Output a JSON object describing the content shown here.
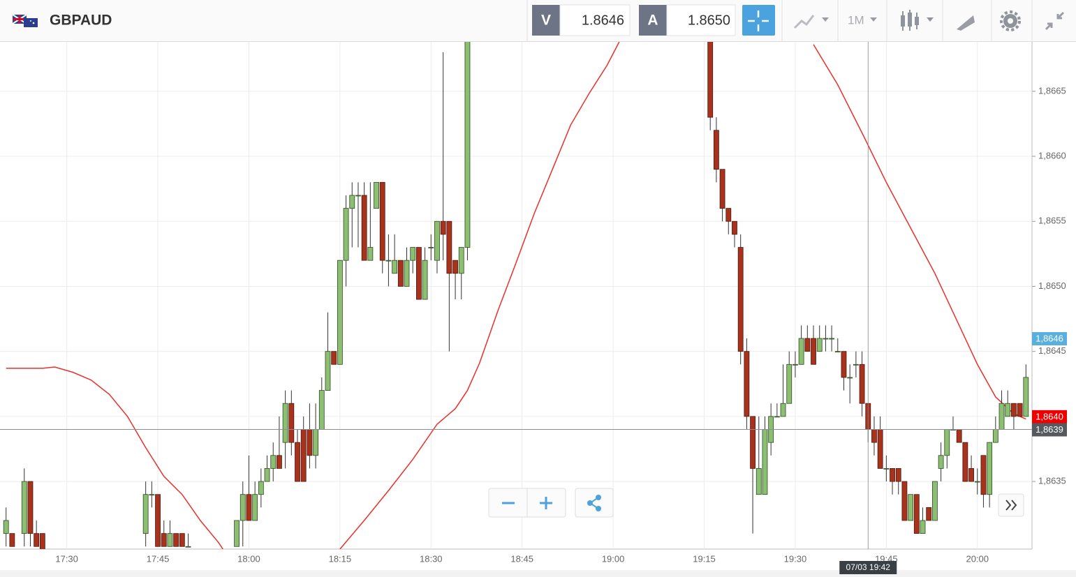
{
  "header": {
    "symbol": "GBPAUD",
    "sell_label": "V",
    "sell_price": {
      "value": 1.8646,
      "label": "1.8646"
    },
    "buy_label": "A",
    "buy_price": {
      "value": 1.865,
      "label": "1.8650"
    },
    "timeframe": "1M"
  },
  "chart_data": {
    "type": "candlestick",
    "up_color": "#8cbf72",
    "down_color": "#a8321c",
    "grid": true,
    "xlim": [
      "17:19",
      "20:09"
    ],
    "ylim": [
      1.86298,
      1.86688
    ],
    "xticks": [
      "17:30",
      "17:45",
      "18:00",
      "18:15",
      "18:30",
      "18:45",
      "19:00",
      "19:15",
      "19:30",
      "19:45",
      "20:00"
    ],
    "yticks": [
      {
        "value": 1.8635,
        "label": "1,8635"
      },
      {
        "value": 1.864,
        "label": "1,8640"
      },
      {
        "value": 1.8645,
        "label": "1,8645"
      },
      {
        "value": 1.865,
        "label": "1,8650"
      },
      {
        "value": 1.8655,
        "label": "1,8655"
      },
      {
        "value": 1.866,
        "label": "1,8660"
      },
      {
        "value": 1.8665,
        "label": "1,8665"
      }
    ],
    "x": [
      "17:20",
      "17:21",
      "17:23",
      "17:24",
      "17:25",
      "17:26",
      "17:43",
      "17:44",
      "17:45",
      "17:46",
      "17:47",
      "17:48",
      "17:49",
      "17:50",
      "17:58",
      "17:59",
      "18:00",
      "18:01",
      "18:02",
      "18:03",
      "18:04",
      "18:05",
      "18:06",
      "18:07",
      "18:08",
      "18:09",
      "18:10",
      "18:11",
      "18:12",
      "18:13",
      "18:14",
      "18:15",
      "18:16",
      "18:17",
      "18:18",
      "18:19",
      "18:20",
      "18:21",
      "18:22",
      "18:23",
      "18:24",
      "18:25",
      "18:26",
      "18:27",
      "18:28",
      "18:29",
      "18:30",
      "18:31",
      "18:32",
      "18:33",
      "18:34",
      "18:35",
      "18:36",
      "19:16",
      "19:17",
      "19:18",
      "19:19",
      "19:20",
      "19:21",
      "19:22",
      "19:23",
      "19:24",
      "19:25",
      "19:26",
      "19:27",
      "19:28",
      "19:29",
      "19:30",
      "19:31",
      "19:32",
      "19:33",
      "19:34",
      "19:35",
      "19:36",
      "19:37",
      "19:38",
      "19:39",
      "19:40",
      "19:41",
      "19:42",
      "19:43",
      "19:44",
      "19:45",
      "19:46",
      "19:47",
      "19:48",
      "19:49",
      "19:50",
      "19:51",
      "19:52",
      "19:53",
      "19:54",
      "19:55",
      "19:56",
      "19:57",
      "19:58",
      "19:59",
      "20:00",
      "20:01",
      "20:02",
      "20:03",
      "20:04",
      "20:05",
      "20:06",
      "20:07",
      "20:08"
    ],
    "open": [
      1.8631,
      1.8631,
      1.8631,
      1.8635,
      1.8631,
      1.8631,
      1.8631,
      1.8634,
      1.8634,
      1.8631,
      1.863,
      1.8631,
      1.8631,
      1.863,
      1.863,
      1.8632,
      1.8634,
      1.8632,
      1.8634,
      1.8635,
      1.8636,
      1.8637,
      1.8638,
      1.8641,
      1.8638,
      1.8639,
      1.8639,
      1.8637,
      1.8639,
      1.8642,
      1.8645,
      1.8644,
      1.8652,
      1.8656,
      1.8657,
      1.8657,
      1.8652,
      1.8656,
      1.8658,
      1.8652,
      1.8651,
      1.8652,
      1.865,
      1.8652,
      1.8653,
      1.8649,
      1.8653,
      1.8652,
      1.8655,
      1.8655,
      1.8652,
      1.8651,
      1.8653,
      1.8672,
      1.8662,
      1.8659,
      1.8656,
      1.8655,
      1.8653,
      1.8645,
      1.864,
      1.8634,
      1.8634,
      1.8638,
      1.864,
      1.864,
      1.8641,
      1.8644,
      1.8644,
      1.8646,
      1.8646,
      1.8645,
      1.8646,
      1.8646,
      1.8645,
      1.8645,
      1.8643,
      1.8644,
      1.8644,
      1.8641,
      1.8639,
      1.8639,
      1.8636,
      1.8636,
      1.8636,
      1.8635,
      1.8632,
      1.8634,
      1.8631,
      1.8633,
      1.8632,
      1.8636,
      1.8637,
      1.8639,
      1.8639,
      1.8638,
      1.8636,
      1.8635,
      1.8637,
      1.8634,
      1.8638,
      1.8639,
      1.864,
      1.8641,
      1.8641,
      1.864
    ],
    "high": [
      1.8633,
      1.8631,
      1.8636,
      1.8635,
      1.8632,
      1.8631,
      1.8635,
      1.8635,
      1.8634,
      1.8632,
      1.8632,
      1.8631,
      1.8631,
      1.8631,
      1.8632,
      1.8635,
      1.8637,
      1.8635,
      1.8636,
      1.8637,
      1.8638,
      1.864,
      1.8642,
      1.8642,
      1.8639,
      1.864,
      1.8641,
      1.8641,
      1.8643,
      1.8648,
      1.8645,
      1.8652,
      1.8657,
      1.8658,
      1.8658,
      1.8658,
      1.8658,
      1.8658,
      1.8658,
      1.8654,
      1.8654,
      1.8652,
      1.8653,
      1.8653,
      1.8653,
      1.8653,
      1.8654,
      1.8655,
      1.8668,
      1.8655,
      1.8652,
      1.8653,
      1.8672,
      1.8672,
      1.8663,
      1.8659,
      1.8656,
      1.8655,
      1.8654,
      1.8646,
      1.864,
      1.864,
      1.864,
      1.8641,
      1.8641,
      1.8644,
      1.8645,
      1.8645,
      1.8647,
      1.8647,
      1.8647,
      1.8647,
      1.8647,
      1.8647,
      1.8646,
      1.8645,
      1.8644,
      1.8645,
      1.8645,
      1.8641,
      1.864,
      1.864,
      1.8637,
      1.8636,
      1.8636,
      1.8635,
      1.8634,
      1.8634,
      1.8633,
      1.8633,
      1.8635,
      1.8638,
      1.8639,
      1.864,
      1.8639,
      1.8638,
      1.8637,
      1.8636,
      1.8637,
      1.8638,
      1.864,
      1.8642,
      1.8642,
      1.8641,
      1.8641,
      1.8644
    ],
    "low": [
      1.863,
      1.863,
      1.863,
      1.863,
      1.863,
      1.8629,
      1.863,
      1.8633,
      1.863,
      1.863,
      1.863,
      1.863,
      1.863,
      1.863,
      1.863,
      1.863,
      1.8632,
      1.8632,
      1.8633,
      1.8635,
      1.8635,
      1.8636,
      1.8636,
      1.8637,
      1.8635,
      1.8635,
      1.8636,
      1.8636,
      1.8639,
      1.8642,
      1.8644,
      1.8644,
      1.865,
      1.8653,
      1.8653,
      1.8652,
      1.8652,
      1.8656,
      1.8651,
      1.865,
      1.8651,
      1.865,
      1.865,
      1.8651,
      1.8649,
      1.8649,
      1.8652,
      1.8651,
      1.8652,
      1.8645,
      1.8649,
      1.8649,
      1.8652,
      1.8662,
      1.8658,
      1.8655,
      1.8654,
      1.8653,
      1.8644,
      1.8639,
      1.8631,
      1.8634,
      1.8634,
      1.8637,
      1.864,
      1.864,
      1.8641,
      1.8643,
      1.8644,
      1.8645,
      1.8644,
      1.8645,
      1.8645,
      1.8645,
      1.8645,
      1.8642,
      1.8641,
      1.8643,
      1.864,
      1.8638,
      1.8637,
      1.8636,
      1.8635,
      1.8634,
      1.8634,
      1.8632,
      1.8632,
      1.8631,
      1.8631,
      1.8632,
      1.8632,
      1.8635,
      1.8636,
      1.8639,
      1.8638,
      1.8635,
      1.8635,
      1.8634,
      1.8633,
      1.8633,
      1.8638,
      1.8639,
      1.864,
      1.8639,
      1.864,
      1.864
    ],
    "close": [
      1.8632,
      1.863,
      1.8635,
      1.8631,
      1.863,
      1.8629,
      1.8634,
      1.8634,
      1.863,
      1.863,
      1.8631,
      1.863,
      1.863,
      1.863,
      1.8632,
      1.8634,
      1.8632,
      1.8634,
      1.8635,
      1.8636,
      1.8637,
      1.8636,
      1.8641,
      1.8638,
      1.8635,
      1.8635,
      1.8637,
      1.8639,
      1.8642,
      1.8645,
      1.8644,
      1.8652,
      1.8656,
      1.8657,
      1.8657,
      1.8652,
      1.8653,
      1.8658,
      1.8652,
      1.8652,
      1.8652,
      1.865,
      1.8652,
      1.8653,
      1.8649,
      1.8652,
      1.8653,
      1.8655,
      1.8654,
      1.8651,
      1.8651,
      1.8653,
      1.867,
      1.8663,
      1.8659,
      1.8656,
      1.8655,
      1.8654,
      1.8645,
      1.864,
      1.8636,
      1.8636,
      1.8639,
      1.864,
      1.864,
      1.8641,
      1.8644,
      1.8644,
      1.8646,
      1.8645,
      1.8644,
      1.8646,
      1.8646,
      1.8646,
      1.8645,
      1.8643,
      1.8643,
      1.8644,
      1.8641,
      1.8639,
      1.8638,
      1.8636,
      1.8636,
      1.8635,
      1.8635,
      1.8632,
      1.8634,
      1.8631,
      1.8632,
      1.8632,
      1.8635,
      1.8637,
      1.8639,
      1.8639,
      1.8638,
      1.8635,
      1.8635,
      1.8635,
      1.8634,
      1.8638,
      1.8639,
      1.8641,
      1.8641,
      1.864,
      1.864,
      1.8643
    ],
    "ma": {
      "color": "#e8302a",
      "x": [
        "17:20",
        "17:26",
        "17:28",
        "17:31",
        "17:34",
        "17:37",
        "17:40",
        "17:43",
        "17:46",
        "17:49",
        "17:52",
        "17:55",
        "17:56",
        "17:57",
        "18:15",
        "18:19",
        "18:23",
        "18:27",
        "18:31",
        "18:34",
        "18:36",
        "18:38",
        "18:41",
        "18:44",
        "18:47",
        "18:50",
        "18:53",
        "18:56",
        "18:59",
        "19:01",
        "19:10",
        "19:33",
        "19:37",
        "19:41",
        "19:45",
        "19:49",
        "19:53",
        "19:57",
        "20:00",
        "20:03",
        "20:06",
        "20:08"
      ],
      "values": [
        1.86437,
        1.86437,
        1.86438,
        1.86434,
        1.86428,
        1.86417,
        1.864,
        1.86376,
        1.86354,
        1.8634,
        1.8632,
        1.86303,
        1.86296,
        null,
        1.86298,
        1.8632,
        1.86343,
        1.86367,
        1.86394,
        1.86406,
        1.8642,
        1.86441,
        1.86481,
        1.86518,
        1.86556,
        1.8659,
        1.86624,
        1.86648,
        1.8667,
        1.86688,
        null,
        1.86686,
        1.86655,
        1.86618,
        1.8658,
        1.86545,
        1.8651,
        1.8647,
        1.8644,
        1.86415,
        1.86402,
        1.86398
      ]
    },
    "price_labels": [
      {
        "value": 1.8646,
        "label": "1,8646",
        "color": "#5ab0dc"
      },
      {
        "value": 1.864,
        "label": "1,8640",
        "color": "#ee0000"
      },
      {
        "value": 1.8639,
        "label": "1,8639",
        "color": "#555a60"
      }
    ],
    "crosshair": {
      "x": "19:42",
      "label": "07/03 19:42"
    }
  }
}
